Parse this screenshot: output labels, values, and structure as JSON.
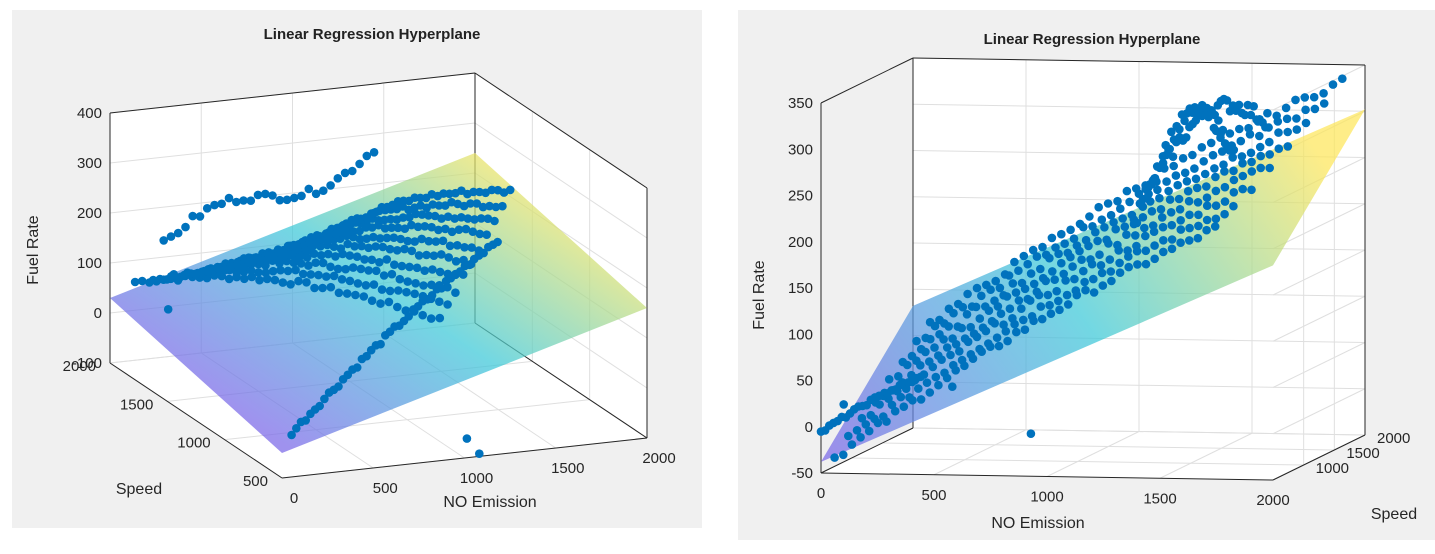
{
  "chart_data": [
    {
      "type": "scatter",
      "title": "Linear Regression Hyperplane",
      "xlabel": "NO Emission",
      "ylabel": "Speed",
      "zlabel": "Fuel Rate",
      "xlim": [
        0,
        2000
      ],
      "ylim": [
        500,
        2000
      ],
      "zlim": [
        -100,
        400
      ],
      "x_ticks": [
        "0",
        "500",
        "1000",
        "1500",
        "2000"
      ],
      "y_ticks": [
        "500",
        "1000",
        "1500",
        "2000"
      ],
      "z_ticks": [
        "-100",
        "0",
        "100",
        "200",
        "300",
        "400"
      ],
      "grid": true,
      "surface": "regression plane (parula colormap)",
      "marker_color": "#0072bd",
      "plane_colors": [
        "#7a68e8",
        "#3cc8d8",
        "#fde65a"
      ]
    },
    {
      "type": "scatter",
      "title": "Linear Regression Hyperplane",
      "xlabel": "NO Emission",
      "ylabel": "Speed",
      "zlabel": "Fuel Rate",
      "xlim": [
        0,
        2000
      ],
      "ylim": [
        500,
        2000
      ],
      "zlim": [
        -50,
        350
      ],
      "x_ticks": [
        "0",
        "500",
        "1000",
        "1500",
        "2000"
      ],
      "y_ticks": [
        "1000",
        "1500",
        "2000"
      ],
      "z_ticks": [
        "-50",
        "0",
        "50",
        "100",
        "150",
        "200",
        "250",
        "300",
        "350"
      ],
      "grid": true,
      "surface": "regression plane (parula colormap)",
      "marker_color": "#0072bd",
      "plane_colors": [
        "#7a68e8",
        "#3cc8d8",
        "#fde65a"
      ]
    }
  ]
}
